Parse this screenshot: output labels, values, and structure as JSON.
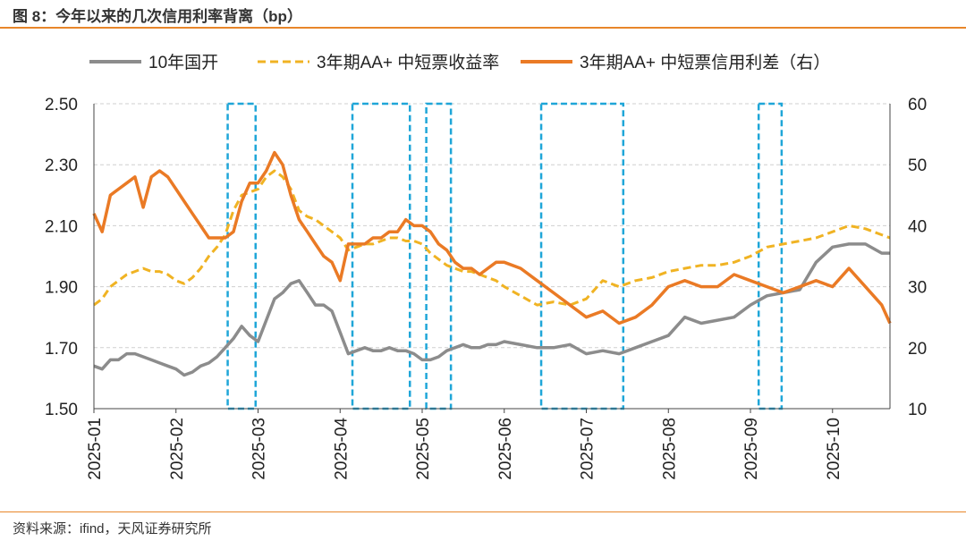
{
  "figure": {
    "title": "图 8：今年以来的几次信用利率背离（bp）",
    "source": "资料来源：ifind，天风证券研究所"
  },
  "chart_data": {
    "type": "line",
    "title": "今年以来的几次信用利率背离（bp）",
    "legend_position": "top",
    "x_ticks": [
      "2025-01",
      "2025-02",
      "2025-03",
      "2025-04",
      "2025-05",
      "2025-06",
      "2025-07",
      "2025-08",
      "2025-09",
      "2025-10"
    ],
    "x_range_months": [
      0,
      9.7
    ],
    "y_left": {
      "range": [
        1.5,
        2.5
      ],
      "ticks": [
        "1.50",
        "1.70",
        "1.90",
        "2.10",
        "2.30",
        "2.50"
      ]
    },
    "y_right": {
      "range": [
        10,
        60
      ],
      "ticks": [
        "10",
        "20",
        "30",
        "40",
        "50",
        "60"
      ]
    },
    "colors": {
      "gdb10y": "#8c8c8c",
      "aa_yield": "#f0b323",
      "aa_spread": "#ea7a25",
      "divergence_box": "#1fa6d8"
    },
    "series": [
      {
        "name": "10年国开",
        "axis": "left",
        "style": "solid",
        "x": [
          0,
          0.1,
          0.2,
          0.3,
          0.4,
          0.5,
          0.6,
          0.7,
          0.8,
          0.9,
          1.0,
          1.1,
          1.2,
          1.3,
          1.4,
          1.5,
          1.6,
          1.7,
          1.8,
          1.9,
          2.0,
          2.1,
          2.2,
          2.3,
          2.4,
          2.5,
          2.6,
          2.7,
          2.8,
          2.9,
          3.0,
          3.1,
          3.2,
          3.3,
          3.4,
          3.5,
          3.6,
          3.7,
          3.8,
          3.9,
          4.0,
          4.1,
          4.2,
          4.3,
          4.4,
          4.5,
          4.6,
          4.7,
          4.8,
          4.9,
          5.0,
          5.2,
          5.4,
          5.6,
          5.8,
          6.0,
          6.2,
          6.4,
          6.6,
          6.8,
          7.0,
          7.2,
          7.4,
          7.6,
          7.8,
          8.0,
          8.2,
          8.4,
          8.6,
          8.8,
          9.0,
          9.2,
          9.4,
          9.6,
          9.7
        ],
        "values": [
          1.64,
          1.63,
          1.66,
          1.66,
          1.68,
          1.68,
          1.67,
          1.66,
          1.65,
          1.64,
          1.63,
          1.61,
          1.62,
          1.64,
          1.65,
          1.67,
          1.7,
          1.73,
          1.77,
          1.74,
          1.72,
          1.79,
          1.86,
          1.88,
          1.91,
          1.92,
          1.88,
          1.84,
          1.84,
          1.82,
          1.75,
          1.68,
          1.69,
          1.7,
          1.69,
          1.69,
          1.7,
          1.69,
          1.69,
          1.68,
          1.66,
          1.66,
          1.67,
          1.69,
          1.7,
          1.71,
          1.7,
          1.7,
          1.71,
          1.71,
          1.72,
          1.71,
          1.7,
          1.7,
          1.71,
          1.68,
          1.69,
          1.68,
          1.7,
          1.72,
          1.74,
          1.8,
          1.78,
          1.79,
          1.8,
          1.84,
          1.87,
          1.88,
          1.89,
          1.98,
          2.03,
          2.04,
          2.04,
          2.01,
          2.01
        ]
      },
      {
        "name": "3年期AA+ 中短票收益率",
        "axis": "left",
        "style": "dashed",
        "x": [
          0,
          0.1,
          0.2,
          0.3,
          0.4,
          0.5,
          0.6,
          0.7,
          0.8,
          0.9,
          1.0,
          1.1,
          1.2,
          1.3,
          1.4,
          1.5,
          1.6,
          1.7,
          1.8,
          1.9,
          2.0,
          2.1,
          2.2,
          2.3,
          2.4,
          2.5,
          2.6,
          2.7,
          2.8,
          2.9,
          3.0,
          3.1,
          3.2,
          3.3,
          3.4,
          3.5,
          3.6,
          3.7,
          3.8,
          3.9,
          4.0,
          4.1,
          4.2,
          4.3,
          4.4,
          4.5,
          4.6,
          4.7,
          4.8,
          4.9,
          5.0,
          5.2,
          5.4,
          5.6,
          5.8,
          6.0,
          6.2,
          6.4,
          6.6,
          6.8,
          7.0,
          7.2,
          7.4,
          7.6,
          7.8,
          8.0,
          8.2,
          8.4,
          8.6,
          8.8,
          9.0,
          9.2,
          9.4,
          9.6,
          9.7
        ],
        "values": [
          1.84,
          1.86,
          1.9,
          1.92,
          1.94,
          1.95,
          1.96,
          1.95,
          1.95,
          1.94,
          1.92,
          1.91,
          1.93,
          1.96,
          2.0,
          2.03,
          2.07,
          2.15,
          2.2,
          2.21,
          2.22,
          2.26,
          2.28,
          2.26,
          2.22,
          2.15,
          2.13,
          2.12,
          2.1,
          2.08,
          2.06,
          2.02,
          2.03,
          2.04,
          2.04,
          2.05,
          2.06,
          2.06,
          2.05,
          2.05,
          2.04,
          2.01,
          1.99,
          1.97,
          1.96,
          1.95,
          1.95,
          1.94,
          1.93,
          1.92,
          1.9,
          1.87,
          1.84,
          1.85,
          1.84,
          1.86,
          1.92,
          1.9,
          1.92,
          1.93,
          1.95,
          1.96,
          1.97,
          1.97,
          1.98,
          2.0,
          2.03,
          2.04,
          2.05,
          2.06,
          2.08,
          2.1,
          2.09,
          2.07,
          2.06
        ]
      },
      {
        "name": "3年期AA+ 中短票信用利差（右）",
        "axis": "right",
        "style": "solid",
        "x": [
          0,
          0.1,
          0.2,
          0.3,
          0.4,
          0.5,
          0.6,
          0.7,
          0.8,
          0.9,
          1.0,
          1.1,
          1.2,
          1.3,
          1.4,
          1.5,
          1.6,
          1.7,
          1.8,
          1.9,
          2.0,
          2.1,
          2.2,
          2.3,
          2.4,
          2.5,
          2.6,
          2.7,
          2.8,
          2.9,
          3.0,
          3.1,
          3.2,
          3.3,
          3.4,
          3.5,
          3.6,
          3.7,
          3.8,
          3.9,
          4.0,
          4.1,
          4.2,
          4.3,
          4.4,
          4.5,
          4.6,
          4.7,
          4.8,
          4.9,
          5.0,
          5.2,
          5.4,
          5.6,
          5.8,
          6.0,
          6.2,
          6.4,
          6.6,
          6.8,
          7.0,
          7.2,
          7.4,
          7.6,
          7.8,
          8.0,
          8.2,
          8.4,
          8.6,
          8.8,
          9.0,
          9.2,
          9.4,
          9.6,
          9.7
        ],
        "values": [
          42,
          39,
          45,
          46,
          47,
          48,
          43,
          48,
          49,
          48,
          46,
          44,
          42,
          40,
          38,
          38,
          38,
          39,
          44,
          47,
          47,
          49,
          52,
          50,
          45,
          41,
          39,
          37,
          35,
          34,
          31,
          37,
          37,
          37,
          38,
          38,
          39,
          39,
          41,
          40,
          40,
          39,
          37,
          36,
          34,
          33,
          33,
          32,
          33,
          34,
          34,
          33,
          31,
          29,
          27,
          25,
          26,
          24,
          25,
          27,
          30,
          31,
          30,
          30,
          32,
          31,
          30,
          29,
          30,
          31,
          30,
          33,
          30,
          27,
          24
        ]
      }
    ],
    "divergence_periods": [
      {
        "x_from": 1.63,
        "x_to": 1.97
      },
      {
        "x_from": 3.15,
        "x_to": 3.85
      },
      {
        "x_from": 4.05,
        "x_to": 4.35
      },
      {
        "x_from": 5.45,
        "x_to": 6.45
      },
      {
        "x_from": 8.1,
        "x_to": 8.38
      }
    ]
  }
}
